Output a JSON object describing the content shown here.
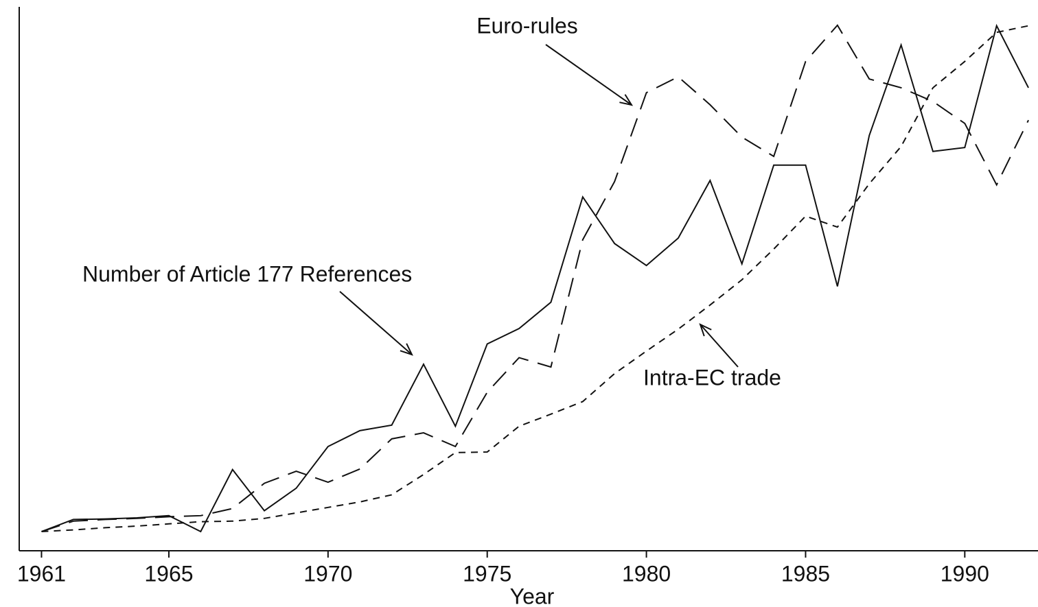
{
  "chart_data": {
    "type": "line",
    "x": [
      1961,
      1962,
      1963,
      1964,
      1965,
      1966,
      1967,
      1968,
      1969,
      1970,
      1971,
      1972,
      1973,
      1974,
      1975,
      1976,
      1977,
      1978,
      1979,
      1980,
      1981,
      1982,
      1983,
      1984,
      1985,
      1986,
      1987,
      1988,
      1989,
      1990,
      1991,
      1992
    ],
    "xlim": [
      1960.3,
      1992.3
    ],
    "xticks": [
      1961,
      1965,
      1970,
      1975,
      1980,
      1985,
      1990
    ],
    "ylim": [
      -0.4,
      100
    ],
    "xlabel": "Year",
    "series": [
      {
        "name": "Number of Article 177 References",
        "color": "#111111",
        "dash": "solid",
        "values": [
          3.1,
          5.3,
          5.4,
          5.6,
          6,
          3.1,
          14.4,
          6.9,
          11,
          18.6,
          21.5,
          22.5,
          33.6,
          22.3,
          37.3,
          40.1,
          44.9,
          64.1,
          55.6,
          51.6,
          56.6,
          67.1,
          51.9,
          69.9,
          69.9,
          47.8,
          75.3,
          91.8,
          72.4,
          73.1,
          95.3,
          84
        ]
      },
      {
        "name": "Euro-rules",
        "color": "#111111",
        "dash": "long",
        "values": [
          3.1,
          5,
          5.3,
          5.5,
          5.8,
          6,
          7.3,
          11.9,
          14.1,
          12.1,
          14.5,
          20,
          21.1,
          18.6,
          28.5,
          34.8,
          33.1,
          56.3,
          66.9,
          83.1,
          86,
          80.9,
          75,
          71.5,
          88.8,
          95.4,
          85.6,
          84,
          81.5,
          77.5,
          66.3,
          78.1
        ]
      },
      {
        "name": "Intra-EC trade",
        "color": "#111111",
        "dash": "short",
        "values": [
          3.1,
          3.4,
          3.8,
          4.1,
          4.5,
          4.9,
          5,
          5.5,
          6.5,
          7.5,
          8.5,
          9.8,
          13.5,
          17.5,
          17.6,
          22.3,
          24.5,
          26.8,
          31.9,
          36,
          40,
          44.4,
          49,
          54.6,
          60.6,
          58.6,
          66.5,
          73.3,
          84,
          88.8,
          94.1,
          95.3
        ]
      }
    ]
  }
}
